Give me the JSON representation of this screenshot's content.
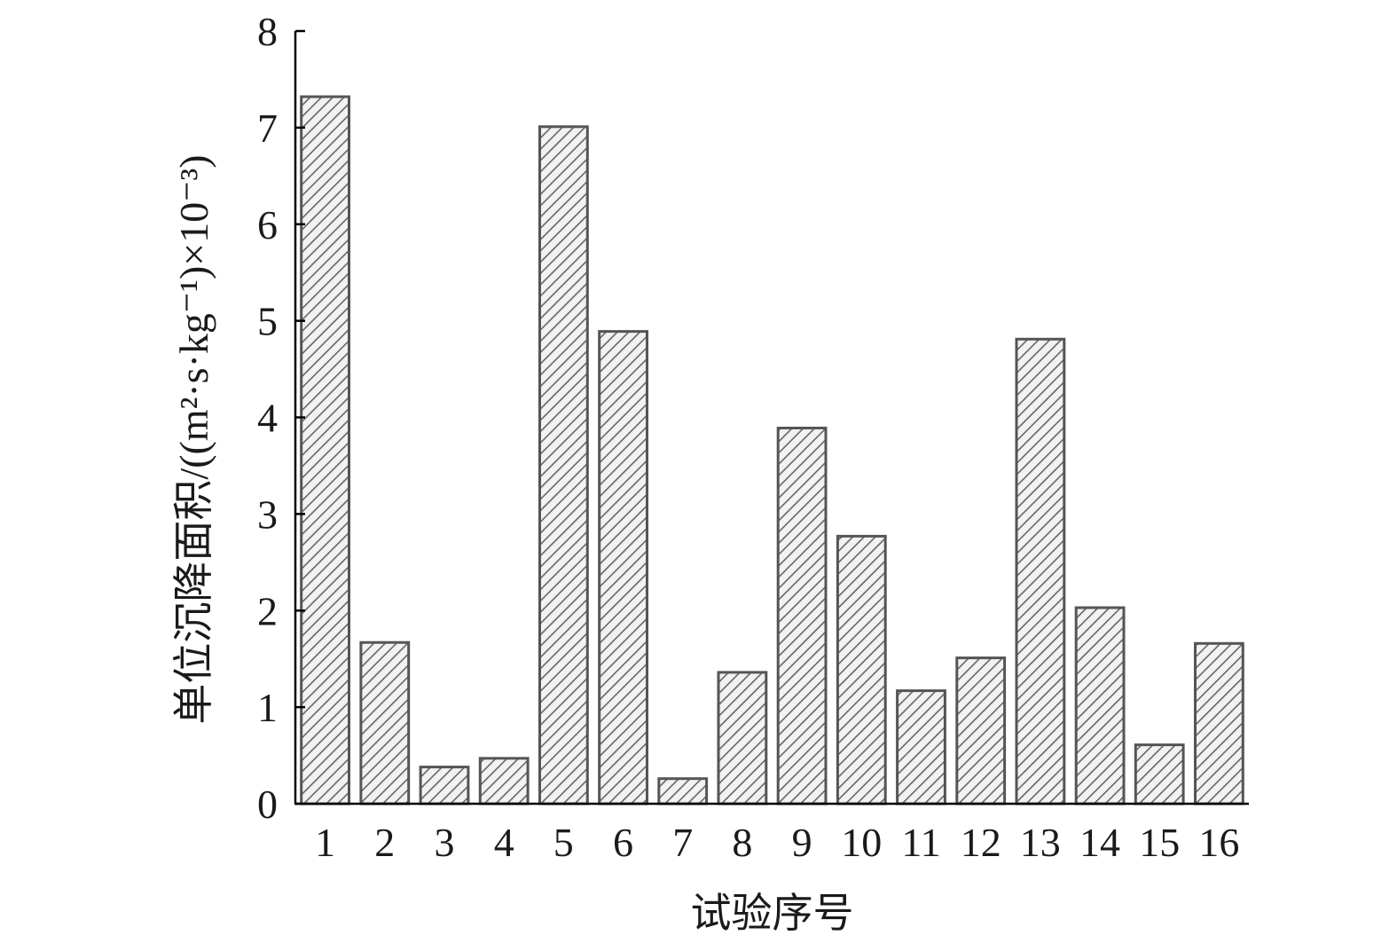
{
  "chart_data": {
    "type": "bar",
    "title": "",
    "xlabel": "试验序号",
    "ylabel": "单位沉降面积/((m²·s·kg⁻¹)×10⁻³)",
    "categories": [
      "1",
      "2",
      "3",
      "4",
      "5",
      "6",
      "7",
      "8",
      "9",
      "10",
      "11",
      "12",
      "13",
      "14",
      "15",
      "16"
    ],
    "values": [
      7.32,
      1.67,
      0.38,
      0.47,
      7.01,
      4.89,
      0.26,
      1.36,
      3.89,
      2.77,
      1.17,
      1.51,
      4.81,
      2.03,
      0.61,
      1.66
    ],
    "ylim": [
      0,
      8
    ],
    "yticks": [
      "0",
      "1",
      "2",
      "3",
      "4",
      "5",
      "6",
      "7",
      "8"
    ],
    "grid": false,
    "legend": "none",
    "bar_pattern": "diagonal-hatch",
    "colors": {
      "bar_stroke": "#555555",
      "hatch": "#666666",
      "bar_fill": "#f2f2f2",
      "axis": "#000000"
    }
  }
}
